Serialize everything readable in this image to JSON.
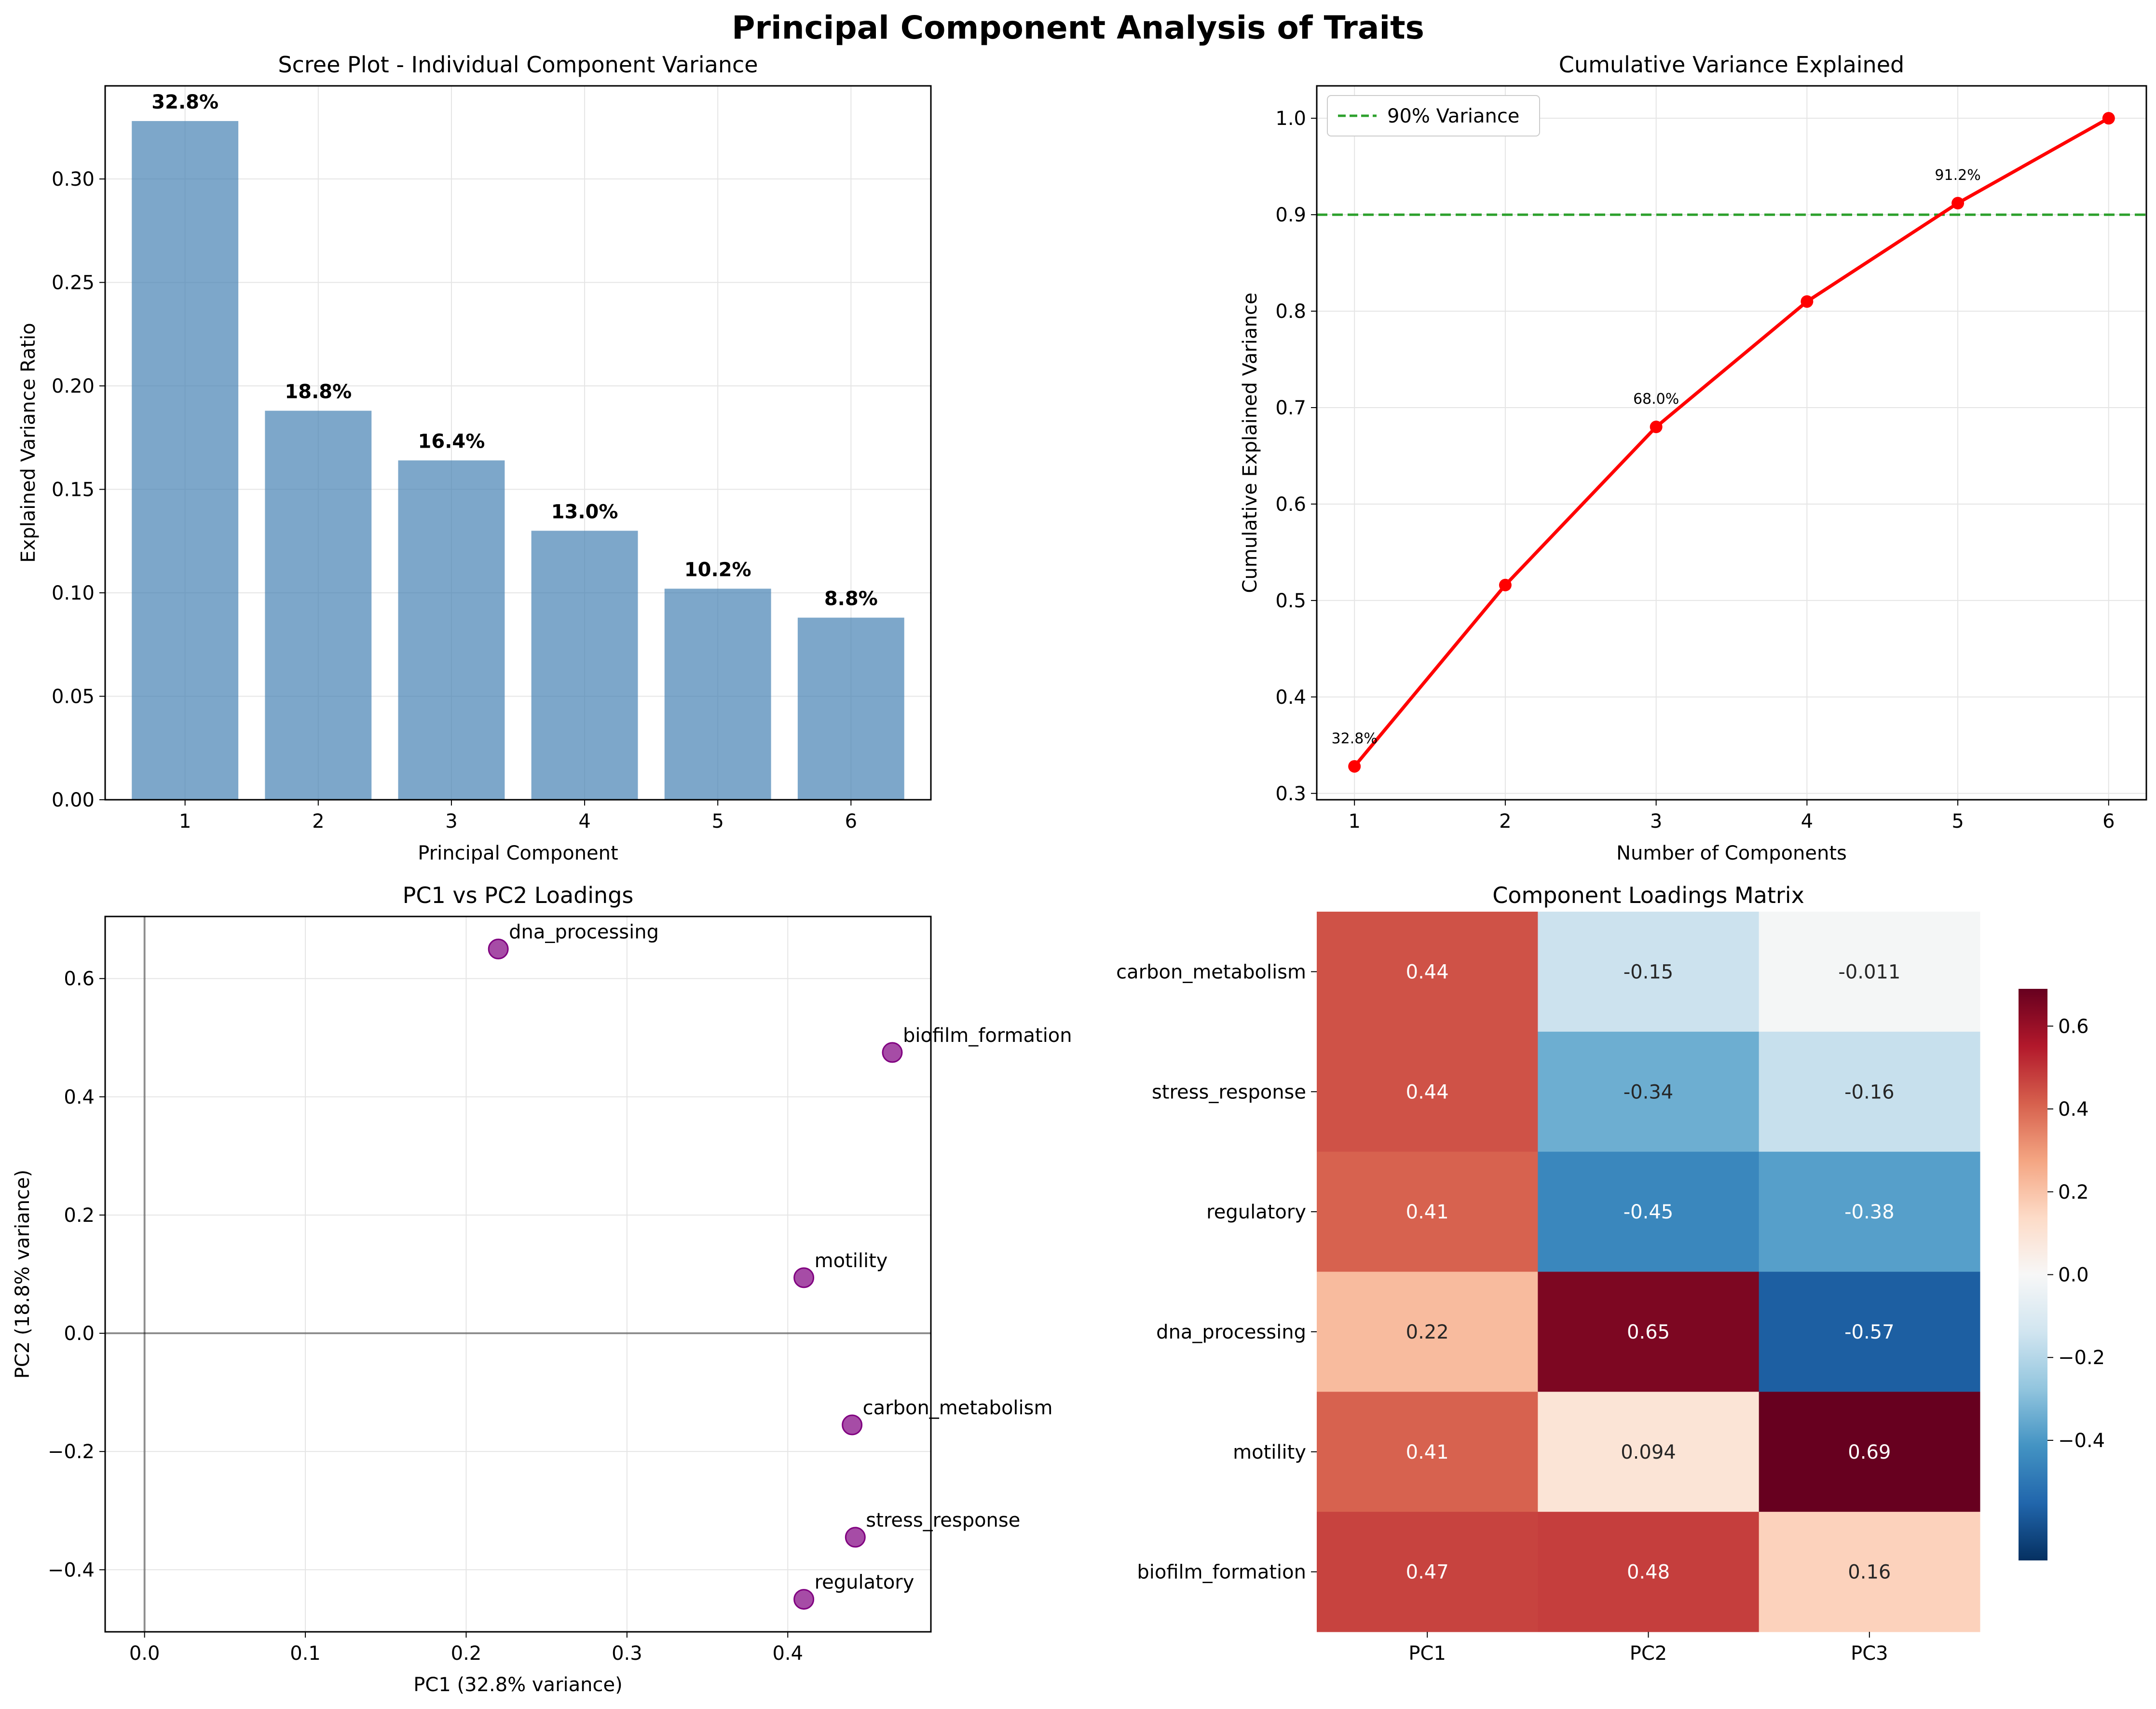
{
  "figure": {
    "title": "Principal Component Analysis of Traits"
  },
  "chart_data": [
    {
      "type": "bar",
      "title": "Scree Plot - Individual Component Variance",
      "xlabel": "Principal Component",
      "ylabel": "Explained Variance Ratio",
      "categories": [
        "1",
        "2",
        "3",
        "4",
        "5",
        "6"
      ],
      "values": [
        0.328,
        0.188,
        0.164,
        0.13,
        0.102,
        0.088
      ],
      "value_labels": [
        "32.8%",
        "18.8%",
        "16.4%",
        "13.0%",
        "10.2%",
        "8.8%"
      ],
      "ylim": [
        0,
        0.345
      ],
      "yticks": [
        0.0,
        0.05,
        0.1,
        0.15,
        0.2,
        0.25,
        0.3
      ],
      "ytick_labels": [
        "0.00",
        "0.05",
        "0.10",
        "0.15",
        "0.20",
        "0.25",
        "0.30"
      ],
      "grid": true,
      "color": "#4682b4"
    },
    {
      "type": "line",
      "title": "Cumulative Variance Explained",
      "xlabel": "Number of Components",
      "ylabel": "Cumulative Explained Variance",
      "x": [
        1,
        2,
        3,
        4,
        5,
        6
      ],
      "y": [
        0.328,
        0.516,
        0.68,
        0.81,
        0.912,
        1.0
      ],
      "point_labels": [
        {
          "x": 1,
          "text": "32.8%"
        },
        {
          "x": 3,
          "text": "68.0%"
        },
        {
          "x": 5,
          "text": "91.2%"
        }
      ],
      "threshold": {
        "y": 0.9,
        "label": "90% Variance",
        "color": "#2ca02c"
      },
      "xlim": [
        0.75,
        6.25
      ],
      "ylim": [
        0.2934,
        1.0336
      ],
      "xticks": [
        1,
        2,
        3,
        4,
        5,
        6
      ],
      "yticks": [
        0.3,
        0.4,
        0.5,
        0.6,
        0.7,
        0.8,
        0.9,
        1.0
      ],
      "ytick_labels": [
        "0.3",
        "0.4",
        "0.5",
        "0.6",
        "0.7",
        "0.8",
        "0.9",
        "1.0"
      ],
      "legend_position": "top-left",
      "grid": true,
      "color": "#ff0000"
    },
    {
      "type": "scatter",
      "title": "PC1 vs PC2 Loadings",
      "xlabel": "PC1 (32.8% variance)",
      "ylabel": "PC2 (18.8% variance)",
      "points": [
        {
          "label": "carbon_metabolism",
          "x": 0.44,
          "y": -0.155
        },
        {
          "label": "stress_response",
          "x": 0.442,
          "y": -0.345
        },
        {
          "label": "regulatory",
          "x": 0.41,
          "y": -0.45
        },
        {
          "label": "dna_processing",
          "x": 0.22,
          "y": 0.65
        },
        {
          "label": "motility",
          "x": 0.41,
          "y": 0.094
        },
        {
          "label": "biofilm_formation",
          "x": 0.465,
          "y": 0.475
        }
      ],
      "xlim": [
        -0.0245,
        0.489
      ],
      "ylim": [
        -0.505,
        0.705
      ],
      "xticks": [
        0.0,
        0.1,
        0.2,
        0.3,
        0.4
      ],
      "xtick_labels": [
        "0.0",
        "0.1",
        "0.2",
        "0.3",
        "0.4"
      ],
      "yticks": [
        -0.4,
        -0.2,
        0.0,
        0.2,
        0.4,
        0.6
      ],
      "ytick_labels": [
        "−0.4",
        "−0.2",
        "0.0",
        "0.2",
        "0.4",
        "0.6"
      ],
      "grid": true,
      "color": "#800080"
    },
    {
      "type": "heatmap",
      "title": "Component Loadings Matrix",
      "rows": [
        "carbon_metabolism",
        "stress_response",
        "regulatory",
        "dna_processing",
        "motility",
        "biofilm_formation"
      ],
      "columns": [
        "PC1",
        "PC2",
        "PC3"
      ],
      "values": [
        [
          0.44,
          -0.15,
          -0.011
        ],
        [
          0.44,
          -0.34,
          -0.16
        ],
        [
          0.41,
          -0.45,
          -0.38
        ],
        [
          0.22,
          0.65,
          -0.57
        ],
        [
          0.41,
          0.094,
          0.69
        ],
        [
          0.47,
          0.48,
          0.16
        ]
      ],
      "cell_labels": [
        [
          "0.44",
          "-0.15",
          "-0.011"
        ],
        [
          "0.44",
          "-0.34",
          "-0.16"
        ],
        [
          "0.41",
          "-0.45",
          "-0.38"
        ],
        [
          "0.22",
          "0.65",
          "-0.57"
        ],
        [
          "0.41",
          "0.094",
          "0.69"
        ],
        [
          "0.47",
          "0.48",
          "0.16"
        ]
      ],
      "colormap": "RdBu_r",
      "vmin": -0.69,
      "vmax": 0.69,
      "colorbar_ticks": [
        -0.4,
        -0.2,
        0.0,
        0.2,
        0.4,
        0.6
      ],
      "colorbar_tick_labels": [
        "−0.4",
        "−0.2",
        "0.0",
        "0.2",
        "0.4",
        "0.6"
      ]
    }
  ]
}
